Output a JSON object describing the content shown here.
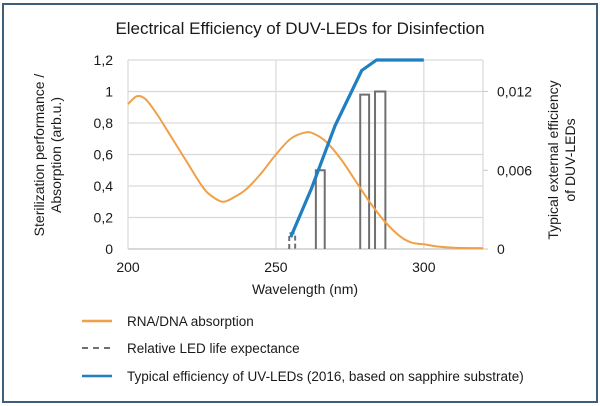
{
  "chart_data": {
    "type": "line",
    "title": "Electrical Efficiency of DUV-LEDs for Disinfection",
    "xlabel": "Wavelength (nm)",
    "ylabel": "Sterilization performance / Absorption (arb.u.)",
    "y2label": "Typical external efficiency of DUV-LEDs",
    "xlim": [
      200,
      320
    ],
    "ylim": [
      0,
      1.2
    ],
    "y2lim": [
      0,
      0.0144
    ],
    "grid": true,
    "legend_position": "bottom",
    "x_ticks": [
      200,
      250,
      300
    ],
    "x_tick_labels": [
      "200",
      "250",
      "300"
    ],
    "y_ticks": [
      0,
      0.2,
      0.4,
      0.6,
      0.8,
      1.0,
      1.2
    ],
    "y_tick_labels": [
      "0",
      "0,2",
      "0,4",
      "0,6",
      "0,8",
      "1",
      "1,2"
    ],
    "y2_ticks": [
      0,
      0.006,
      0.012
    ],
    "y2_tick_labels": [
      "0",
      "0,006",
      "0,012"
    ],
    "series": [
      {
        "name": "RNA/DNA absorption",
        "axis": "left",
        "style": "line",
        "color": "#f0a048",
        "x": [
          200,
          203,
          206,
          210,
          215,
          220,
          225,
          228,
          232,
          236,
          240,
          245,
          250,
          255,
          260,
          263,
          267,
          272,
          277,
          282,
          287,
          292,
          296,
          300,
          305,
          310,
          320
        ],
        "y": [
          0.92,
          0.97,
          0.95,
          0.85,
          0.7,
          0.55,
          0.4,
          0.34,
          0.3,
          0.33,
          0.38,
          0.48,
          0.6,
          0.7,
          0.74,
          0.73,
          0.68,
          0.57,
          0.43,
          0.29,
          0.17,
          0.08,
          0.04,
          0.03,
          0.015,
          0.008,
          0.005
        ]
      },
      {
        "name": "Relative LED life expectance",
        "axis": "left",
        "style": "bars-outline",
        "color": "#707070",
        "bars": [
          {
            "x_start": 254.5,
            "x_end": 256.5,
            "value": 0.1,
            "dashed": true
          },
          {
            "x_start": 263.5,
            "x_end": 266.5,
            "value": 0.5,
            "dashed": false
          },
          {
            "x_start": 278.5,
            "x_end": 281.5,
            "value": 0.98,
            "dashed": false
          },
          {
            "x_start": 283.5,
            "x_end": 287.0,
            "value": 1.0,
            "dashed": false
          }
        ]
      },
      {
        "name": "Typical efficiency of UV-LEDs (2016, based on sapphire substrate)",
        "axis": "right",
        "style": "line",
        "color": "#1f7fc0",
        "x": [
          255,
          262,
          270,
          279,
          284,
          300
        ],
        "y": [
          0.0009,
          0.0046,
          0.0094,
          0.0136,
          0.0144,
          0.0144
        ]
      }
    ],
    "legend": [
      {
        "label": "RNA/DNA absorption",
        "style": "solid",
        "color": "#f0a048"
      },
      {
        "label": "Relative LED life expectance",
        "style": "dashed",
        "color": "#707070"
      },
      {
        "label": "Typical efficiency of UV-LEDs (2016, based on sapphire substrate)",
        "style": "solid",
        "color": "#1f7fc0"
      }
    ]
  },
  "colors": {
    "frame": "#3f5e7c",
    "grid": "#d9d9d9"
  }
}
